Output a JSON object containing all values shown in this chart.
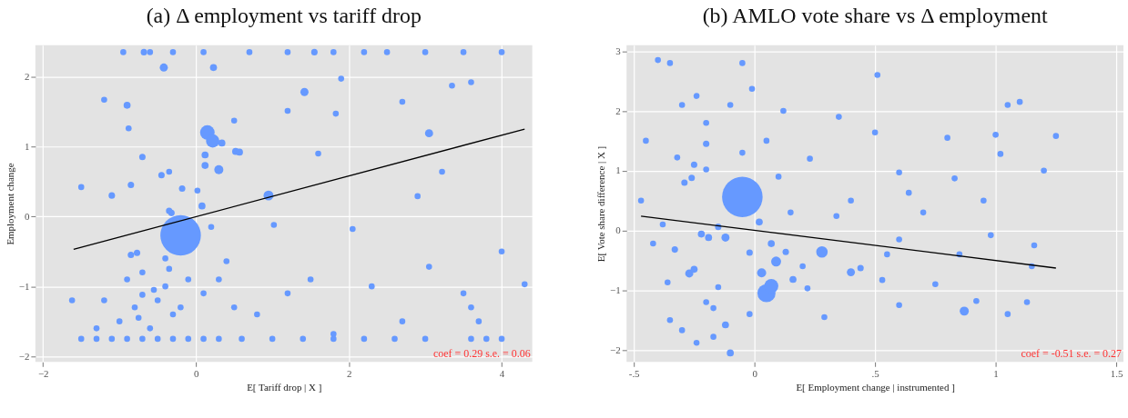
{
  "chart_data": [
    {
      "type": "bubble",
      "title": "(a) Δ employment vs tariff drop",
      "xlabel": "E[ Tariff drop | X ]",
      "ylabel": "Employment change",
      "xlim": [
        -2.1,
        4.4
      ],
      "ylim": [
        -2.08,
        2.45
      ],
      "xticks": [
        -2,
        0,
        2,
        4
      ],
      "yticks": [
        -2,
        -1,
        0,
        1,
        2
      ],
      "grid": true,
      "annotations": [
        "coef =  0.29 s.e. =  0.06"
      ],
      "series": [
        {
          "type": "bubble",
          "marker": "circle",
          "color": "#6699ff",
          "x": [
            -0.2,
            0.15,
            0.22,
            0.34,
            0.3,
            0.52,
            0.57,
            0.12,
            0.12,
            0.08,
            0.95,
            3.05,
            1.42,
            -0.42,
            0.23,
            -0.9,
            -0.88,
            -0.7,
            -0.85,
            -1.1,
            -0.45,
            -0.35,
            -0.18,
            -0.35,
            -0.32,
            1.55,
            -0.68,
            2.2,
            1.83,
            1.2,
            -0.77,
            -0.85,
            -0.7,
            -0.4,
            0.2,
            0.02,
            1.02,
            0.4,
            3.22,
            2.9,
            2.05,
            3.05,
            4.0,
            1.8,
            -1.5,
            -1.3,
            -1.1,
            -0.9,
            -0.7,
            -0.5,
            -0.3,
            -0.1,
            0.1,
            0.3,
            0.6,
            1.0,
            1.4,
            1.8,
            2.2,
            2.6,
            3.0,
            3.6,
            3.8,
            4.0,
            -0.95,
            -0.6,
            -0.3,
            0.1,
            0.7,
            1.2,
            1.8,
            2.5,
            3.0,
            3.5,
            4.0,
            -1.0,
            -0.8,
            -0.6,
            -0.5,
            -0.3,
            -0.9,
            -0.7,
            -0.4,
            -0.2,
            -0.1,
            -1.2,
            -1.3,
            -0.75,
            -0.55,
            -0.35,
            0.1,
            0.3,
            0.5,
            0.8,
            1.2,
            1.5,
            2.3,
            2.7,
            3.6,
            3.7,
            3.5,
            4.3,
            1.6,
            2.7,
            3.35,
            3.6,
            -1.2,
            -1.5,
            -1.62,
            0.5,
            1.9
          ],
          "values": [
            -0.27,
            1.2,
            1.08,
            1.05,
            0.67,
            0.93,
            0.92,
            0.88,
            0.73,
            0.15,
            0.3,
            1.19,
            1.78,
            2.13,
            2.13,
            1.59,
            1.26,
            0.85,
            0.45,
            0.3,
            0.59,
            0.64,
            0.4,
            0.08,
            0.05,
            2.35,
            2.35,
            2.35,
            1.47,
            1.51,
            -0.52,
            -0.55,
            -1.12,
            -0.6,
            -0.15,
            0.37,
            -0.12,
            -0.64,
            0.64,
            0.29,
            -0.18,
            -0.72,
            -0.5,
            -1.68,
            -1.75,
            -1.75,
            -1.75,
            -1.75,
            -1.75,
            -1.75,
            -1.75,
            -1.75,
            -1.75,
            -1.75,
            -1.75,
            -1.75,
            -1.75,
            -1.75,
            -1.75,
            -1.75,
            -1.75,
            -1.75,
            -1.75,
            -1.75,
            2.35,
            2.35,
            2.35,
            2.35,
            2.35,
            2.35,
            2.35,
            2.35,
            2.35,
            2.35,
            2.35,
            -1.5,
            -1.3,
            -1.6,
            -1.2,
            -1.4,
            -0.9,
            -0.8,
            -1.0,
            -1.3,
            -0.9,
            -1.2,
            -1.6,
            -1.45,
            -1.05,
            -0.75,
            -1.1,
            -0.9,
            -1.3,
            -1.4,
            -1.1,
            -0.9,
            -1.0,
            -1.5,
            -1.3,
            -1.5,
            -1.1,
            -0.97,
            0.9,
            1.64,
            1.87,
            1.92,
            1.67,
            0.42,
            -1.2,
            1.37,
            1.97
          ],
          "sizes": [
            1,
            0.13,
            0.11,
            0.03,
            0.05,
            0.03,
            0.03,
            0.03,
            0.03,
            0.03,
            0.06,
            0.04,
            0.04,
            0.04,
            0.03,
            0.03,
            0.022,
            0.025,
            0.025,
            0.025,
            0.025,
            0.022,
            0.025,
            0.025,
            0.025,
            0.025,
            0.025,
            0.022,
            0.022,
            0.022,
            0.025,
            0.025,
            0.022,
            0.022,
            0.022,
            0.022,
            0.022,
            0.022,
            0.022,
            0.022,
            0.022,
            0.022,
            0.022,
            0.022,
            0.022,
            0.022,
            0.022,
            0.022,
            0.022,
            0.022,
            0.022,
            0.022,
            0.022,
            0.022,
            0.022,
            0.022,
            0.022,
            0.022,
            0.022,
            0.022,
            0.022,
            0.022,
            0.022,
            0.022,
            0.022,
            0.022,
            0.022,
            0.022,
            0.022,
            0.022,
            0.022,
            0.022,
            0.022,
            0.022,
            0.022,
            0.022,
            0.022,
            0.022,
            0.022,
            0.022,
            0.022,
            0.022,
            0.022,
            0.022,
            0.022,
            0.022,
            0.022,
            0.022,
            0.022,
            0.022,
            0.022,
            0.022,
            0.022,
            0.022,
            0.022,
            0.022,
            0.022,
            0.022,
            0.022,
            0.022,
            0.022,
            0.022,
            0.022,
            0.022,
            0.022,
            0.022,
            0.022,
            0.022,
            0.022,
            0.022,
            0.022
          ]
        },
        {
          "type": "line",
          "color": "#000000",
          "x": [
            -1.6,
            4.3
          ],
          "values": [
            -0.47,
            1.25
          ]
        }
      ]
    },
    {
      "type": "bubble",
      "title": "(b) AMLO vote share vs Δ employment",
      "xlabel": "E[ Employment change | instrumented ]",
      "ylabel": "E[ Vote share difference | X ]",
      "xlim": [
        -0.53,
        1.53
      ],
      "ylim": [
        -2.2,
        3.1
      ],
      "xticks": [
        {
          "value": -0.5,
          "label": "-.5"
        },
        0,
        {
          "value": 0.5,
          "label": ".5"
        },
        1,
        1.5
      ],
      "yticks": [
        -2,
        -1,
        0,
        1,
        2,
        3
      ],
      "grid": true,
      "annotations": [
        "coef = -0.51 s.e. =  0.27"
      ],
      "series": [
        {
          "type": "bubble",
          "marker": "circle",
          "color": "#6699ff",
          "x": [
            -0.05,
            0.05,
            0.07,
            0.28,
            0.09,
            0.03,
            0.87,
            -0.1,
            0.4,
            0.44,
            0.16,
            0.13,
            0.07,
            0.02,
            -0.02,
            -0.12,
            -0.27,
            -0.25,
            -0.33,
            -0.25,
            -0.2,
            -0.26,
            -0.29,
            -0.12,
            -0.22,
            -0.19,
            -0.15,
            0.53,
            0.29,
            0.34,
            0.6,
            0.83,
            -0.24,
            -0.17,
            -0.24,
            -0.3,
            -0.2,
            -0.15,
            -0.17,
            -0.32,
            -0.2,
            -0.4,
            -0.05,
            -0.35,
            -0.01,
            0.51,
            0.12,
            0.35,
            0.5,
            0.23,
            0.64,
            0.98,
            1.0,
            1.02,
            1.05,
            1.1,
            1.15,
            1.16,
            1.2,
            1.25,
            1.13,
            1.05,
            0.92,
            0.6,
            0.75,
            0.7,
            -0.45,
            -0.47,
            -0.42,
            -0.36,
            -0.35,
            -0.38,
            -0.3,
            -0.2,
            -0.1,
            -0.05,
            0.05,
            0.1,
            0.15,
            0.2,
            0.22,
            -0.02,
            0.4,
            0.55,
            0.6,
            0.85,
            0.8,
            0.95
          ],
          "values": [
            0.56,
            -1.05,
            -0.93,
            -0.36,
            -0.52,
            -0.71,
            -1.35,
            -2.05,
            -0.7,
            -0.63,
            -0.82,
            -0.36,
            -0.22,
            0.14,
            -0.37,
            -1.58,
            -0.72,
            -0.65,
            -0.32,
            1.1,
            1.45,
            0.88,
            0.8,
            -0.12,
            -0.06,
            -0.12,
            0.06,
            -0.83,
            -1.45,
            0.24,
            0.97,
            0.87,
            2.25,
            -1.78,
            -1.88,
            -1.67,
            -1.2,
            -0.95,
            -1.3,
            1.22,
            1.02,
            2.85,
            2.8,
            2.8,
            2.37,
            2.6,
            2.0,
            1.9,
            1.64,
            1.2,
            0.63,
            -0.08,
            1.6,
            1.28,
            2.1,
            2.15,
            -0.6,
            -0.25,
            1.0,
            1.58,
            -1.2,
            -1.4,
            -1.18,
            -1.25,
            -0.9,
            0.3,
            1.5,
            0.5,
            -0.22,
            -0.87,
            -1.5,
            0.1,
            2.1,
            1.8,
            2.1,
            1.3,
            1.5,
            0.9,
            0.3,
            -0.6,
            -0.97,
            -1.4,
            0.5,
            -0.4,
            -0.15,
            -0.4,
            1.55,
            0.5
          ],
          "sizes": [
            1,
            0.2,
            0.12,
            0.08,
            0.06,
            0.05,
            0.05,
            0.03,
            0.04,
            0.025,
            0.03,
            0.025,
            0.03,
            0.03,
            0.025,
            0.03,
            0.04,
            0.03,
            0.025,
            0.025,
            0.025,
            0.025,
            0.025,
            0.04,
            0.03,
            0.03,
            0.025,
            0.022,
            0.022,
            0.022,
            0.022,
            0.022,
            0.022,
            0.022,
            0.022,
            0.022,
            0.022,
            0.022,
            0.022,
            0.022,
            0.022,
            0.022,
            0.022,
            0.022,
            0.022,
            0.022,
            0.022,
            0.022,
            0.022,
            0.022,
            0.022,
            0.022,
            0.022,
            0.022,
            0.022,
            0.022,
            0.022,
            0.022,
            0.022,
            0.022,
            0.022,
            0.022,
            0.022,
            0.022,
            0.022,
            0.022,
            0.022,
            0.022,
            0.022,
            0.022,
            0.022,
            0.022,
            0.022,
            0.022,
            0.022,
            0.022,
            0.022,
            0.022,
            0.022,
            0.022,
            0.022,
            0.022,
            0.022,
            0.022,
            0.022,
            0.022,
            0.022,
            0.022
          ]
        },
        {
          "type": "line",
          "color": "#000000",
          "x": [
            -0.47,
            1.25
          ],
          "values": [
            0.24,
            -0.63
          ]
        }
      ]
    }
  ]
}
